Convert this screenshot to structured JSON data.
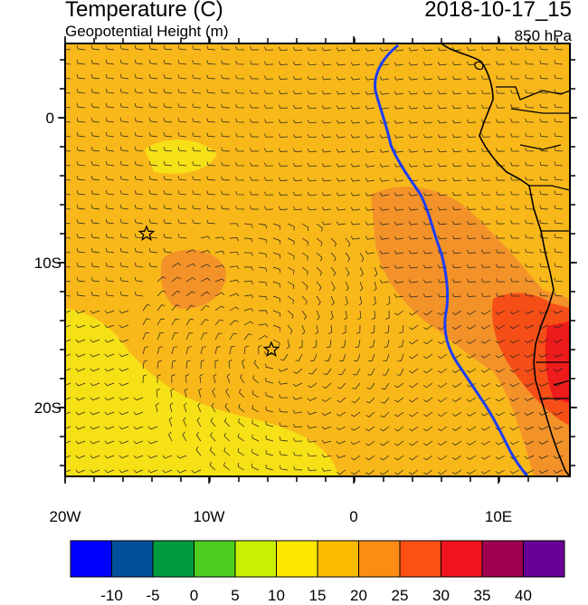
{
  "header": {
    "title": "Temperature (C)",
    "subtitle": "Geopotential Height (m)",
    "valid_time": "2018-10-17_15",
    "level": "850 hPa"
  },
  "map": {
    "lat_ticks": [
      "0",
      "10S",
      "20S"
    ],
    "lon_ticks": [
      "20W",
      "10W",
      "0",
      "10E"
    ],
    "markers": [
      "star",
      "star"
    ]
  },
  "colorbar": {
    "labels": [
      "-10",
      "-5",
      "0",
      "5",
      "10",
      "15",
      "20",
      "25",
      "30",
      "35",
      "40"
    ],
    "colors": [
      "#0000ff",
      "#00509b",
      "#009b3c",
      "#4ccd1e",
      "#c8f000",
      "#fce600",
      "#fcba00",
      "#fc8c14",
      "#fc5014",
      "#f0141e",
      "#a00050",
      "#690096"
    ]
  },
  "colors": {
    "background_field": "#f9b81a",
    "warm_field": "#f39229",
    "cool_field": "#f6e016",
    "hot_field": "#f54e17",
    "height_contour": "#1d3df5",
    "coastline": "#000000"
  }
}
